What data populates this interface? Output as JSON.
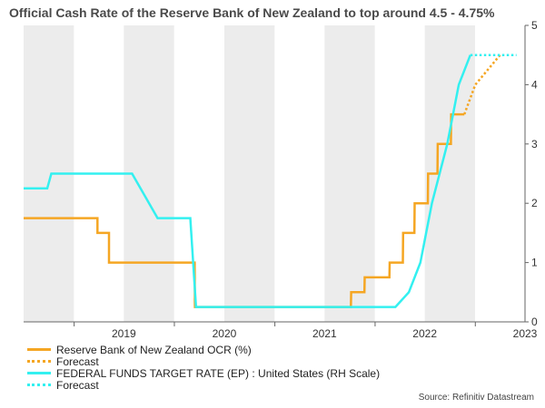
{
  "title": "Official Cash Rate of the Reserve Bank of New Zealand to top around 4.5 - 4.75%",
  "source": "Source: Refinitiv Datastream",
  "colors": {
    "ocr": "#f5a623",
    "fed": "#33f0f0",
    "band": "#ececec",
    "axis": "#666666"
  },
  "legend": [
    {
      "label": "Reserve Bank of New Zealand OCR (%)",
      "color": "#f5a623",
      "style": "solid"
    },
    {
      "label": "Forecast",
      "color": "#f5a623",
      "style": "dotted"
    },
    {
      "label": "FEDERAL FUNDS TARGET RATE (EP) : United States (RH Scale)",
      "color": "#33f0f0",
      "style": "solid"
    },
    {
      "label": "Forecast",
      "color": "#33f0f0",
      "style": "dotted"
    }
  ],
  "chart_data": {
    "type": "line",
    "title": "Official Cash Rate of the Reserve Bank of New Zealand to top around 4.5 - 4.75%",
    "x_ticks": [
      "2019",
      "2020",
      "2021",
      "2022",
      "2023"
    ],
    "xlim": [
      "2018-07-01",
      "2023-07-01"
    ],
    "ylim_right": [
      0,
      5
    ],
    "y_ticks_right": [
      "0",
      "1",
      "2",
      "3",
      "4",
      "5"
    ],
    "shaded_bands": [
      [
        "2018-07-01",
        "2018-12-31"
      ],
      [
        "2019-07-01",
        "2019-12-31"
      ],
      [
        "2020-07-01",
        "2020-12-31"
      ],
      [
        "2021-07-01",
        "2021-12-31"
      ],
      [
        "2022-07-01",
        "2022-12-31"
      ]
    ],
    "grid": false,
    "series": [
      {
        "name": "Reserve Bank of New Zealand OCR (%)",
        "style": "solid",
        "x": [
          "2018-07-01",
          "2019-03-27",
          "2019-03-27",
          "2019-05-08",
          "2019-05-08",
          "2020-03-15",
          "2020-03-16",
          "2021-10-05",
          "2021-10-06",
          "2021-11-23",
          "2021-11-24",
          "2022-02-22",
          "2022-02-23",
          "2022-04-12",
          "2022-04-13",
          "2022-05-24",
          "2022-05-25",
          "2022-07-12",
          "2022-07-13",
          "2022-08-16",
          "2022-08-17",
          "2022-10-04",
          "2022-10-05",
          "2022-11-22"
        ],
        "y": [
          1.75,
          1.75,
          1.5,
          1.5,
          1.0,
          1.0,
          0.25,
          0.25,
          0.5,
          0.5,
          0.75,
          0.75,
          1.0,
          1.0,
          1.5,
          1.5,
          2.0,
          2.0,
          2.5,
          2.5,
          3.0,
          3.0,
          3.5,
          3.5
        ]
      },
      {
        "name": "Forecast",
        "style": "dotted",
        "x": [
          "2022-11-22",
          "2023-01-01",
          "2023-02-15",
          "2023-04-01"
        ],
        "y": [
          3.5,
          4.0,
          4.25,
          4.5
        ]
      },
      {
        "name": "FEDERAL FUNDS TARGET RATE (EP) : United States (RH Scale)",
        "style": "solid",
        "x": [
          "2018-07-01",
          "2018-09-25",
          "2018-10-10",
          "2019-07-31",
          "2019-11-01",
          "2020-02-28",
          "2020-03-20",
          "2022-03-16",
          "2022-05-04",
          "2022-06-15",
          "2022-07-27",
          "2022-09-21",
          "2022-11-02",
          "2022-12-14"
        ],
        "y": [
          2.25,
          2.25,
          2.5,
          2.5,
          1.75,
          1.75,
          0.25,
          0.25,
          0.5,
          1.0,
          2.0,
          3.0,
          4.0,
          4.5
        ]
      },
      {
        "name": "Forecast",
        "style": "dotted",
        "x": [
          "2022-12-14",
          "2023-05-31"
        ],
        "y": [
          4.5,
          4.5
        ]
      }
    ]
  }
}
